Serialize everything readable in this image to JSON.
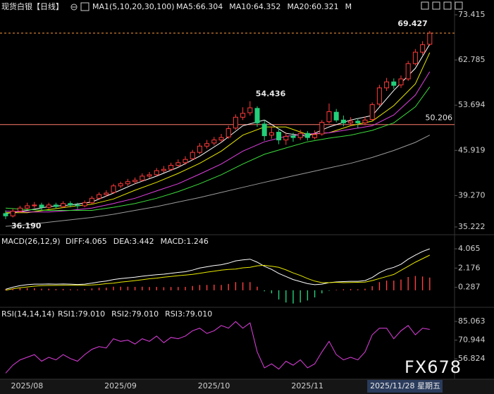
{
  "chart_data": [
    {
      "type": "candlestick",
      "title": "现货白银【日线】",
      "ma_label": "MA1(5,10,20,30,100)",
      "log": true,
      "ylim": [
        35.222,
        73.415
      ],
      "yticks": [
        73.415,
        62.785,
        53.694,
        45.919,
        {
          "value": 39.27,
          "label": "39.270"
        },
        35.222
      ],
      "xticks": [
        {
          "value": 2,
          "label": "2025/08"
        },
        {
          "value": 15,
          "label": "2025/09"
        },
        {
          "value": 28,
          "label": "2025/10"
        },
        {
          "value": 41,
          "label": "2025/11"
        },
        {
          "value": 59,
          "label": "2025/11/28 星期五"
        }
      ],
      "up_color": "#ff3b3b",
      "down_color": "#22d07a",
      "open": [
        36.9,
        36.6,
        37.2,
        37.6,
        37.9,
        38.0,
        37.7,
        38.0,
        37.8,
        38.2,
        38.0,
        37.9,
        38.3,
        38.9,
        39.4,
        39.7,
        40.6,
        40.9,
        41.2,
        41.4,
        42.0,
        42.2,
        42.8,
        43.0,
        43.6,
        44.0,
        44.6,
        45.6,
        46.6,
        47.1,
        47.6,
        48.1,
        49.6,
        51.5,
        52.3,
        53.1,
        50.3,
        48.4,
        48.9,
        47.6,
        48.3,
        48.0,
        48.7,
        48.0,
        48.6,
        50.7,
        52.4,
        51.0,
        50.5,
        50.8,
        50.5,
        51.1,
        53.9,
        57.0,
        58.2,
        57.6,
        58.8,
        62.0,
        64.5,
        66.3
      ],
      "high": [
        37.3,
        37.5,
        37.9,
        38.3,
        38.4,
        38.3,
        38.3,
        38.3,
        38.5,
        38.5,
        38.3,
        38.6,
        39.2,
        39.7,
        40.0,
        40.9,
        41.2,
        41.6,
        41.8,
        42.4,
        42.6,
        43.2,
        43.5,
        44.0,
        44.5,
        45.0,
        46.0,
        47.1,
        47.6,
        48.1,
        48.6,
        50.0,
        52.0,
        53.3,
        54.436,
        53.5,
        51.0,
        49.9,
        49.5,
        48.9,
        48.8,
        49.3,
        49.1,
        49.2,
        51.0,
        54.0,
        53.0,
        51.8,
        51.5,
        51.3,
        51.6,
        54.2,
        57.6,
        59.0,
        58.9,
        59.5,
        62.6,
        65.2,
        67.0,
        69.427
      ],
      "low": [
        36.19,
        36.4,
        37.0,
        37.4,
        37.6,
        37.4,
        37.5,
        37.5,
        37.6,
        37.7,
        37.5,
        37.7,
        38.1,
        38.7,
        39.1,
        39.5,
        40.3,
        40.6,
        40.9,
        41.2,
        41.7,
        42.0,
        42.5,
        42.8,
        43.3,
        43.7,
        44.4,
        45.3,
        46.2,
        46.7,
        47.2,
        47.8,
        49.3,
        51.0,
        51.8,
        49.8,
        47.5,
        47.8,
        46.9,
        46.8,
        47.3,
        47.6,
        47.5,
        47.7,
        48.3,
        50.4,
        50.6,
        49.9,
        50.0,
        49.6,
        50.1,
        50.9,
        53.5,
        56.4,
        56.8,
        57.0,
        58.4,
        61.6,
        63.9,
        66.0
      ],
      "close": [
        36.6,
        37.2,
        37.6,
        37.9,
        38.0,
        37.7,
        38.0,
        37.8,
        38.2,
        38.0,
        37.9,
        38.3,
        38.9,
        39.4,
        39.6,
        40.6,
        40.9,
        41.2,
        41.4,
        42.0,
        42.2,
        42.8,
        43.0,
        43.6,
        44.0,
        44.5,
        45.6,
        46.6,
        47.0,
        47.6,
        48.0,
        49.5,
        51.5,
        52.2,
        53.2,
        50.5,
        48.3,
        48.8,
        47.6,
        48.2,
        48.0,
        48.7,
        48.0,
        48.5,
        50.6,
        52.5,
        51.0,
        50.5,
        50.8,
        50.5,
        51.0,
        53.8,
        57.0,
        58.2,
        57.5,
        58.8,
        62.0,
        64.5,
        66.2,
        68.9
      ],
      "extremes": [
        {
          "index": 34,
          "value": 54.436,
          "label": "54.436",
          "color": "#ff4d4d"
        },
        {
          "index": 0,
          "value": 36.19,
          "label": "36.190",
          "color": "#4cd964"
        },
        {
          "index": 59,
          "value": 69.427,
          "label": "69.427",
          "color": "#ff4d4d"
        }
      ],
      "hline": 50.206,
      "hline_color": "#ff7b6b",
      "series": [
        {
          "name": "MA5:66.304",
          "color": "#ffffff",
          "x": [
            0,
            3,
            6,
            9,
            12,
            15,
            18,
            21,
            24,
            27,
            30,
            33,
            36,
            39,
            42,
            45,
            48,
            51,
            54,
            57,
            59
          ],
          "values": [
            36.9,
            37.3,
            37.8,
            38.0,
            38.4,
            39.6,
            40.9,
            42.0,
            43.3,
            45.0,
            47.2,
            50.0,
            51.0,
            48.7,
            48.2,
            49.8,
            51.0,
            51.8,
            56.5,
            61.0,
            66.3
          ]
        },
        {
          "name": "MA10:64.352",
          "color": "#e8e800",
          "x": [
            0,
            3,
            6,
            9,
            12,
            15,
            18,
            21,
            24,
            27,
            30,
            33,
            36,
            39,
            42,
            45,
            48,
            51,
            54,
            57,
            59
          ],
          "values": [
            37.0,
            37.0,
            37.4,
            37.8,
            38.1,
            38.8,
            40.0,
            41.1,
            42.4,
            43.9,
            45.8,
            48.4,
            49.8,
            49.8,
            48.5,
            48.8,
            50.0,
            50.8,
            53.6,
            57.8,
            64.4
          ]
        },
        {
          "name": "MA20:60.321",
          "color": "#e040e0",
          "x": [
            0,
            3,
            6,
            9,
            12,
            15,
            18,
            21,
            24,
            27,
            30,
            33,
            36,
            39,
            42,
            45,
            48,
            51,
            54,
            57,
            59
          ],
          "values": [
            37.2,
            37.1,
            37.1,
            37.3,
            37.6,
            38.2,
            38.9,
            39.9,
            40.9,
            42.3,
            43.8,
            45.8,
            47.3,
            48.2,
            48.6,
            48.8,
            49.4,
            50.0,
            51.9,
            55.6,
            60.3
          ]
        },
        {
          "name": "M",
          "color": "#3cdc3c",
          "x": [
            0,
            3,
            6,
            9,
            12,
            15,
            18,
            21,
            24,
            27,
            30,
            33,
            36,
            39,
            42,
            45,
            48,
            51,
            54,
            57,
            59
          ],
          "values": [
            37.6,
            37.4,
            37.3,
            37.3,
            37.3,
            37.7,
            38.2,
            38.9,
            39.8,
            40.9,
            42.2,
            43.8,
            45.3,
            46.3,
            47.3,
            47.9,
            48.4,
            49.2,
            50.5,
            53.4,
            57.2
          ]
        },
        {
          "color": "#9a9a9a",
          "x": [
            0,
            3,
            6,
            9,
            12,
            15,
            18,
            21,
            24,
            27,
            30,
            33,
            36,
            39,
            42,
            45,
            48,
            51,
            54,
            57,
            59
          ],
          "values": [
            35.3,
            35.5,
            35.8,
            36.1,
            36.4,
            36.8,
            37.3,
            37.8,
            38.4,
            39.0,
            39.7,
            40.4,
            41.1,
            41.8,
            42.5,
            43.2,
            43.9,
            44.8,
            45.9,
            47.2,
            48.4
          ]
        }
      ]
    },
    {
      "type": "macd",
      "title": "MACD(26,12,9)",
      "ylim": [
        -1.6,
        5.1
      ],
      "yticks": [
        0.287,
        2.176,
        4.065
      ],
      "up_color": "#ff4040",
      "down_color": "#22d07a",
      "series": [
        {
          "name": "DIFF:4.065",
          "color": "#ffffff",
          "values": [
            0.1,
            0.3,
            0.45,
            0.55,
            0.6,
            0.6,
            0.62,
            0.6,
            0.62,
            0.6,
            0.57,
            0.6,
            0.7,
            0.82,
            0.9,
            1.05,
            1.15,
            1.22,
            1.28,
            1.38,
            1.45,
            1.52,
            1.58,
            1.67,
            1.75,
            1.82,
            1.98,
            2.18,
            2.3,
            2.42,
            2.5,
            2.66,
            2.88,
            2.98,
            3.05,
            2.75,
            2.35,
            2.05,
            1.65,
            1.35,
            1.05,
            0.85,
            0.65,
            0.55,
            0.6,
            0.75,
            0.82,
            0.85,
            0.88,
            0.88,
            0.95,
            1.25,
            1.72,
            2.05,
            2.25,
            2.55,
            3.05,
            3.45,
            3.8,
            4.065
          ]
        },
        {
          "name": "DEA:3.442",
          "color": "#e8e800",
          "values": [
            0.0,
            0.15,
            0.25,
            0.33,
            0.4,
            0.45,
            0.47,
            0.48,
            0.49,
            0.5,
            0.49,
            0.5,
            0.52,
            0.57,
            0.65,
            0.7,
            0.8,
            0.87,
            0.95,
            1.03,
            1.13,
            1.19,
            1.28,
            1.35,
            1.43,
            1.49,
            1.56,
            1.66,
            1.78,
            1.87,
            1.98,
            2.04,
            2.08,
            2.2,
            2.25,
            2.4,
            2.45,
            2.35,
            2.25,
            2.0,
            1.7,
            1.45,
            1.15,
            0.9,
            0.75,
            0.75,
            0.78,
            0.75,
            0.76,
            0.78,
            0.8,
            0.95,
            1.15,
            1.35,
            1.55,
            1.95,
            2.35,
            2.75,
            3.1,
            3.442
          ]
        },
        {
          "name": "MACD:1.246",
          "color": "#e040e0",
          "kind": "histogram",
          "values": [
            0.1,
            0.15,
            0.2,
            0.22,
            0.2,
            0.15,
            0.15,
            0.12,
            0.13,
            0.1,
            0.08,
            0.1,
            0.18,
            0.25,
            0.25,
            0.35,
            0.35,
            0.35,
            0.33,
            0.35,
            0.32,
            0.33,
            0.3,
            0.32,
            0.32,
            0.33,
            0.42,
            0.52,
            0.52,
            0.55,
            0.52,
            0.62,
            0.8,
            0.78,
            0.8,
            0.35,
            -0.1,
            -0.3,
            -0.9,
            -1.2,
            -1.3,
            -1.2,
            -1.0,
            -0.7,
            -0.3,
            -0.05,
            0.05,
            0.1,
            0.12,
            0.1,
            0.15,
            0.4,
            0.8,
            0.95,
            0.95,
            1.05,
            1.3,
            1.4,
            1.35,
            1.246
          ]
        }
      ]
    },
    {
      "type": "line",
      "title": "RSI(14,14,14)",
      "ylim": [
        43,
        89.9
      ],
      "yticks": [
        85.063,
        70.944,
        56.824
      ],
      "legend": [
        {
          "text": "RSI1:79.010",
          "color": "#ffffff"
        },
        {
          "text": "RSI2:79.010",
          "color": "#e8e800"
        },
        {
          "text": "RSI3:79.010",
          "color": "#e040e0"
        }
      ],
      "color": "#e040e0",
      "values": [
        46,
        52,
        56,
        58,
        60,
        55,
        58,
        56,
        60,
        57,
        55,
        60,
        64,
        66,
        65,
        72,
        70,
        71,
        68,
        72,
        70,
        74,
        69,
        73,
        72,
        74,
        78,
        80,
        76,
        78,
        82,
        80,
        85,
        80,
        84,
        62,
        50,
        53,
        49,
        55,
        52,
        56,
        50,
        53,
        62,
        70,
        60,
        56,
        58,
        56,
        62,
        75,
        80,
        80,
        72,
        78,
        82,
        75,
        80,
        79.01
      ]
    }
  ],
  "watermark": "FX678"
}
